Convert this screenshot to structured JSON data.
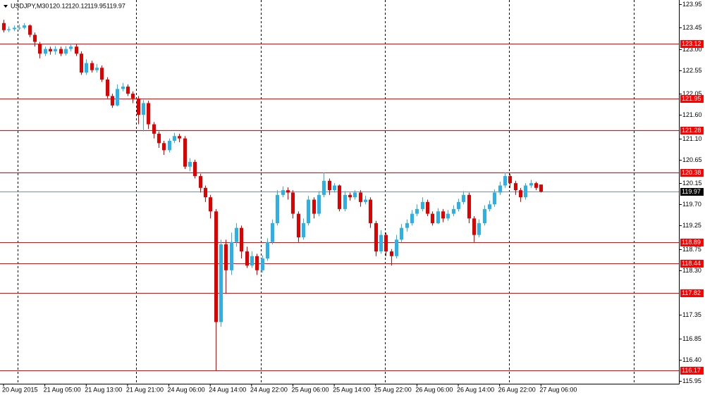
{
  "chart_data": {
    "type": "candlestick",
    "title": "USDJPY,M30",
    "header_values": [
      120.12,
      120.12,
      119.95,
      119.97
    ],
    "categories": [
      "20 Aug 2015",
      null,
      null,
      null,
      null,
      null,
      null,
      null,
      "21 Aug 05:00",
      null,
      null,
      null,
      null,
      null,
      null,
      null,
      "21 Aug 13:00",
      null,
      null,
      null,
      null,
      null,
      null,
      null,
      "21 Aug 21:00",
      null,
      null,
      null,
      null,
      null,
      null,
      null,
      "24 Aug 06:00",
      null,
      null,
      null,
      null,
      null,
      null,
      null,
      "24 Aug 14:00",
      null,
      null,
      null,
      null,
      null,
      null,
      null,
      "24 Aug 22:00",
      null,
      null,
      null,
      null,
      null,
      null,
      null,
      "25 Aug 06:00",
      null,
      null,
      null,
      null,
      null,
      null,
      null,
      "25 Aug 14:00",
      null,
      null,
      null,
      null,
      null,
      null,
      null,
      "25 Aug 22:00",
      null,
      null,
      null,
      null,
      null,
      null,
      null,
      "26 Aug 06:00",
      null,
      null,
      null,
      null,
      null,
      null,
      null,
      "26 Aug 14:00",
      null,
      null,
      null,
      null,
      null,
      null,
      null,
      "26 Aug 22:00",
      null,
      null,
      null,
      null,
      null,
      null,
      null,
      "27 Aug 06:00"
    ],
    "open": [
      123.55,
      123.4,
      123.42,
      123.45,
      123.45,
      123.5,
      123.3,
      123.1,
      122.9,
      123.0,
      122.95,
      123.0,
      122.9,
      123.0,
      123.05,
      122.9,
      122.5,
      122.7,
      122.55,
      122.6,
      122.35,
      122.0,
      121.8,
      122.15,
      122.2,
      122.05,
      121.95,
      121.6,
      121.85,
      121.4,
      121.2,
      121.0,
      120.85,
      121.05,
      121.15,
      121.1,
      120.5,
      120.6,
      120.3,
      120.05,
      119.85,
      119.55,
      117.2,
      118.85,
      118.3,
      118.9,
      119.2,
      118.7,
      118.4,
      118.6,
      118.3,
      118.55,
      118.9,
      119.3,
      119.9,
      120.0,
      119.95,
      119.5,
      119.0,
      119.3,
      119.8,
      119.5,
      119.9,
      120.2,
      120.0,
      120.1,
      119.6,
      119.9,
      119.85,
      119.95,
      119.75,
      119.8,
      119.3,
      118.7,
      119.05,
      118.7,
      118.6,
      118.95,
      119.2,
      119.3,
      119.5,
      119.6,
      119.75,
      119.5,
      119.3,
      119.55,
      119.4,
      119.5,
      119.6,
      119.75,
      119.9,
      119.4,
      119.05,
      119.3,
      119.6,
      119.7,
      119.95,
      120.1,
      120.3,
      120.15,
      120.0,
      119.85,
      120.1,
      120.15,
      120.12
    ],
    "high": [
      123.62,
      123.48,
      123.5,
      123.52,
      123.55,
      123.52,
      123.35,
      123.15,
      123.05,
      123.05,
      123.06,
      123.05,
      123.06,
      123.12,
      123.1,
      122.95,
      122.78,
      122.75,
      122.68,
      122.65,
      122.4,
      122.05,
      122.25,
      122.28,
      122.25,
      122.1,
      122.0,
      121.92,
      121.9,
      121.45,
      121.25,
      121.05,
      121.1,
      121.22,
      121.2,
      121.15,
      120.68,
      120.65,
      120.35,
      120.1,
      119.9,
      119.6,
      118.95,
      118.95,
      119.1,
      119.3,
      119.25,
      118.8,
      118.7,
      118.65,
      118.62,
      118.98,
      119.38,
      120.0,
      120.08,
      120.06,
      120.0,
      119.55,
      119.4,
      119.88,
      119.85,
      119.98,
      120.38,
      120.25,
      120.15,
      120.12,
      119.98,
      119.95,
      120.0,
      120.0,
      119.88,
      119.85,
      119.35,
      119.15,
      119.1,
      118.75,
      119.05,
      119.28,
      119.38,
      119.58,
      119.7,
      119.85,
      119.8,
      119.55,
      119.62,
      119.6,
      119.58,
      119.68,
      119.82,
      119.98,
      119.95,
      119.45,
      119.38,
      119.68,
      119.78,
      120.02,
      120.18,
      120.38,
      120.35,
      120.2,
      120.05,
      120.15,
      120.22,
      120.18,
      120.12
    ],
    "low": [
      123.35,
      123.36,
      123.38,
      123.4,
      123.42,
      123.25,
      123.05,
      122.8,
      122.85,
      122.88,
      122.88,
      122.85,
      122.86,
      122.95,
      122.85,
      122.45,
      122.45,
      122.5,
      122.5,
      122.3,
      121.95,
      121.75,
      121.78,
      122.1,
      122.0,
      121.85,
      121.4,
      121.25,
      121.3,
      121.1,
      120.9,
      120.75,
      120.8,
      121.0,
      121.02,
      120.45,
      120.4,
      120.25,
      119.95,
      119.75,
      119.4,
      116.17,
      117.1,
      117.8,
      118.2,
      118.8,
      118.55,
      118.35,
      118.35,
      118.2,
      118.25,
      118.5,
      118.85,
      119.25,
      119.85,
      119.8,
      119.4,
      118.9,
      118.95,
      119.25,
      119.4,
      119.45,
      119.85,
      119.9,
      119.95,
      119.55,
      119.55,
      119.78,
      119.8,
      119.65,
      119.7,
      119.2,
      118.6,
      118.65,
      118.6,
      118.4,
      118.55,
      118.9,
      119.12,
      119.25,
      119.45,
      119.55,
      119.45,
      119.25,
      119.28,
      119.32,
      119.35,
      119.45,
      119.55,
      119.7,
      119.3,
      118.9,
      119.0,
      119.25,
      119.55,
      119.65,
      119.9,
      120.05,
      120.05,
      119.9,
      119.75,
      119.8,
      120.05,
      120.0,
      119.95
    ],
    "close": [
      123.4,
      123.42,
      123.45,
      123.45,
      123.5,
      123.3,
      123.15,
      122.9,
      123.0,
      122.95,
      123.0,
      122.9,
      123.0,
      123.05,
      122.9,
      122.5,
      122.7,
      122.55,
      122.6,
      122.35,
      122.0,
      121.8,
      122.15,
      122.2,
      122.05,
      121.95,
      121.6,
      121.85,
      121.4,
      121.2,
      121.0,
      120.85,
      121.05,
      121.15,
      121.1,
      120.5,
      120.6,
      120.3,
      120.05,
      119.85,
      119.55,
      117.2,
      118.85,
      118.3,
      118.9,
      119.2,
      118.7,
      118.4,
      118.6,
      118.3,
      118.55,
      118.9,
      119.3,
      119.9,
      120.0,
      119.95,
      119.5,
      119.0,
      119.3,
      119.8,
      119.5,
      119.9,
      120.2,
      120.0,
      120.1,
      119.6,
      119.9,
      119.85,
      119.95,
      119.75,
      119.8,
      119.3,
      118.7,
      119.05,
      118.7,
      118.6,
      118.95,
      119.2,
      119.3,
      119.5,
      119.6,
      119.75,
      119.5,
      119.3,
      119.55,
      119.4,
      119.5,
      119.6,
      119.75,
      119.9,
      119.4,
      119.05,
      119.3,
      119.6,
      119.7,
      119.95,
      120.1,
      120.3,
      120.15,
      120.0,
      119.85,
      120.1,
      120.15,
      120.05,
      119.97
    ],
    "up_color": "#29b1e8",
    "down_color": "#e00000",
    "ylim": [
      115.89,
      124.04
    ],
    "yticks": [
      123.95,
      123.45,
      {
        "value": 123,
        "label": "123.00"
      },
      122.55,
      122.05,
      {
        "value": 121.6,
        "label": "121.60"
      },
      {
        "value": 121.1,
        "label": "121.10"
      },
      120.65,
      120.15,
      {
        "value": 119.7,
        "label": "119.70"
      },
      119.25,
      118.75,
      {
        "value": 118.3,
        "label": "118.30"
      },
      117.35,
      116.85,
      {
        "value": 116.4,
        "label": "116.40"
      },
      115.95
    ],
    "levels": [
      123.12,
      121.95,
      121.28,
      120.38,
      118.89,
      118.44,
      117.82,
      116.17
    ],
    "level_color": "#ff0000",
    "current_price": 119.97,
    "current_color": "#7a8fa6"
  }
}
